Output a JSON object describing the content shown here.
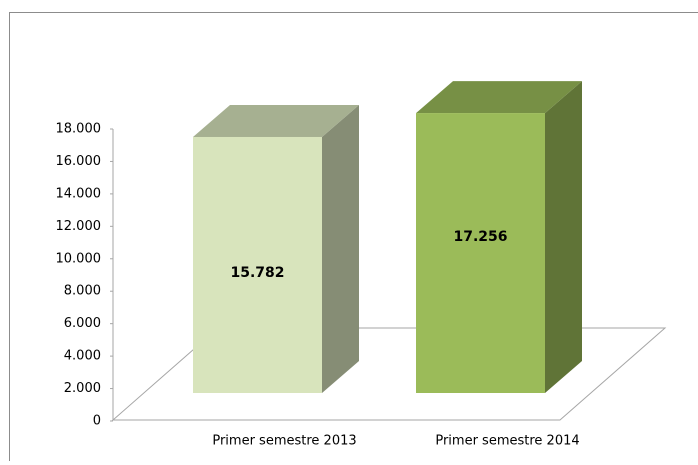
{
  "chart_data": {
    "type": "bar",
    "categories": [
      "Primer semestre 2013",
      "Primer semestre 2014"
    ],
    "values": [
      15782,
      17256
    ],
    "value_labels": [
      "15.782",
      "17.256"
    ],
    "colors": [
      "#d8e4bc",
      "#9bbb59"
    ],
    "ylim": [
      0,
      18000
    ],
    "yticks": [
      0,
      {
        "value": 2000,
        "label": "2.000"
      },
      {
        "value": 4000,
        "label": "4.000"
      },
      {
        "value": 6000,
        "label": "6.000"
      },
      {
        "value": 8000,
        "label": "8.000"
      },
      {
        "value": 10000,
        "label": "10.000"
      },
      {
        "value": 12000,
        "label": "12.000"
      },
      {
        "value": 14000,
        "label": "14.000"
      },
      {
        "value": 16000,
        "label": "16.000"
      },
      {
        "value": 18000,
        "label": "18.000"
      }
    ],
    "grid": false
  }
}
